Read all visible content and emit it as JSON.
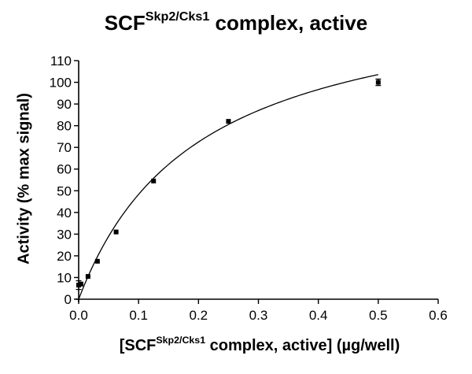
{
  "chart_data": {
    "type": "scatter",
    "title_main": "SCF",
    "title_sup": "Skp2/Cks1",
    "title_rest": " complex, active",
    "xlabel_pre": "[SCF",
    "xlabel_sup": "Skp2/Cks1",
    "xlabel_post": " complex, active] (µg/well)",
    "ylabel": "Activity (% max signal)",
    "xlim": [
      0,
      0.6
    ],
    "ylim": [
      0,
      110
    ],
    "xticks": [
      "0.0",
      "0.1",
      "0.2",
      "0.3",
      "0.4",
      "0.5",
      "0.6"
    ],
    "yticks": [
      "0",
      "10",
      "20",
      "30",
      "40",
      "50",
      "60",
      "70",
      "80",
      "90",
      "100",
      "110"
    ],
    "grid": false,
    "series": [
      {
        "x": [
          0.0,
          0.0039,
          0.0156,
          0.0313,
          0.0625,
          0.125,
          0.25,
          0.5
        ],
        "y": [
          6.5,
          7,
          10.5,
          17.5,
          31,
          54.5,
          82,
          100
        ],
        "error": [
          2,
          0,
          0,
          0,
          0,
          0,
          0,
          1.5
        ]
      }
    ],
    "fit_curve": {
      "model": "hyperbolic",
      "vmax": 145,
      "km": 0.2,
      "offset": 0
    }
  }
}
